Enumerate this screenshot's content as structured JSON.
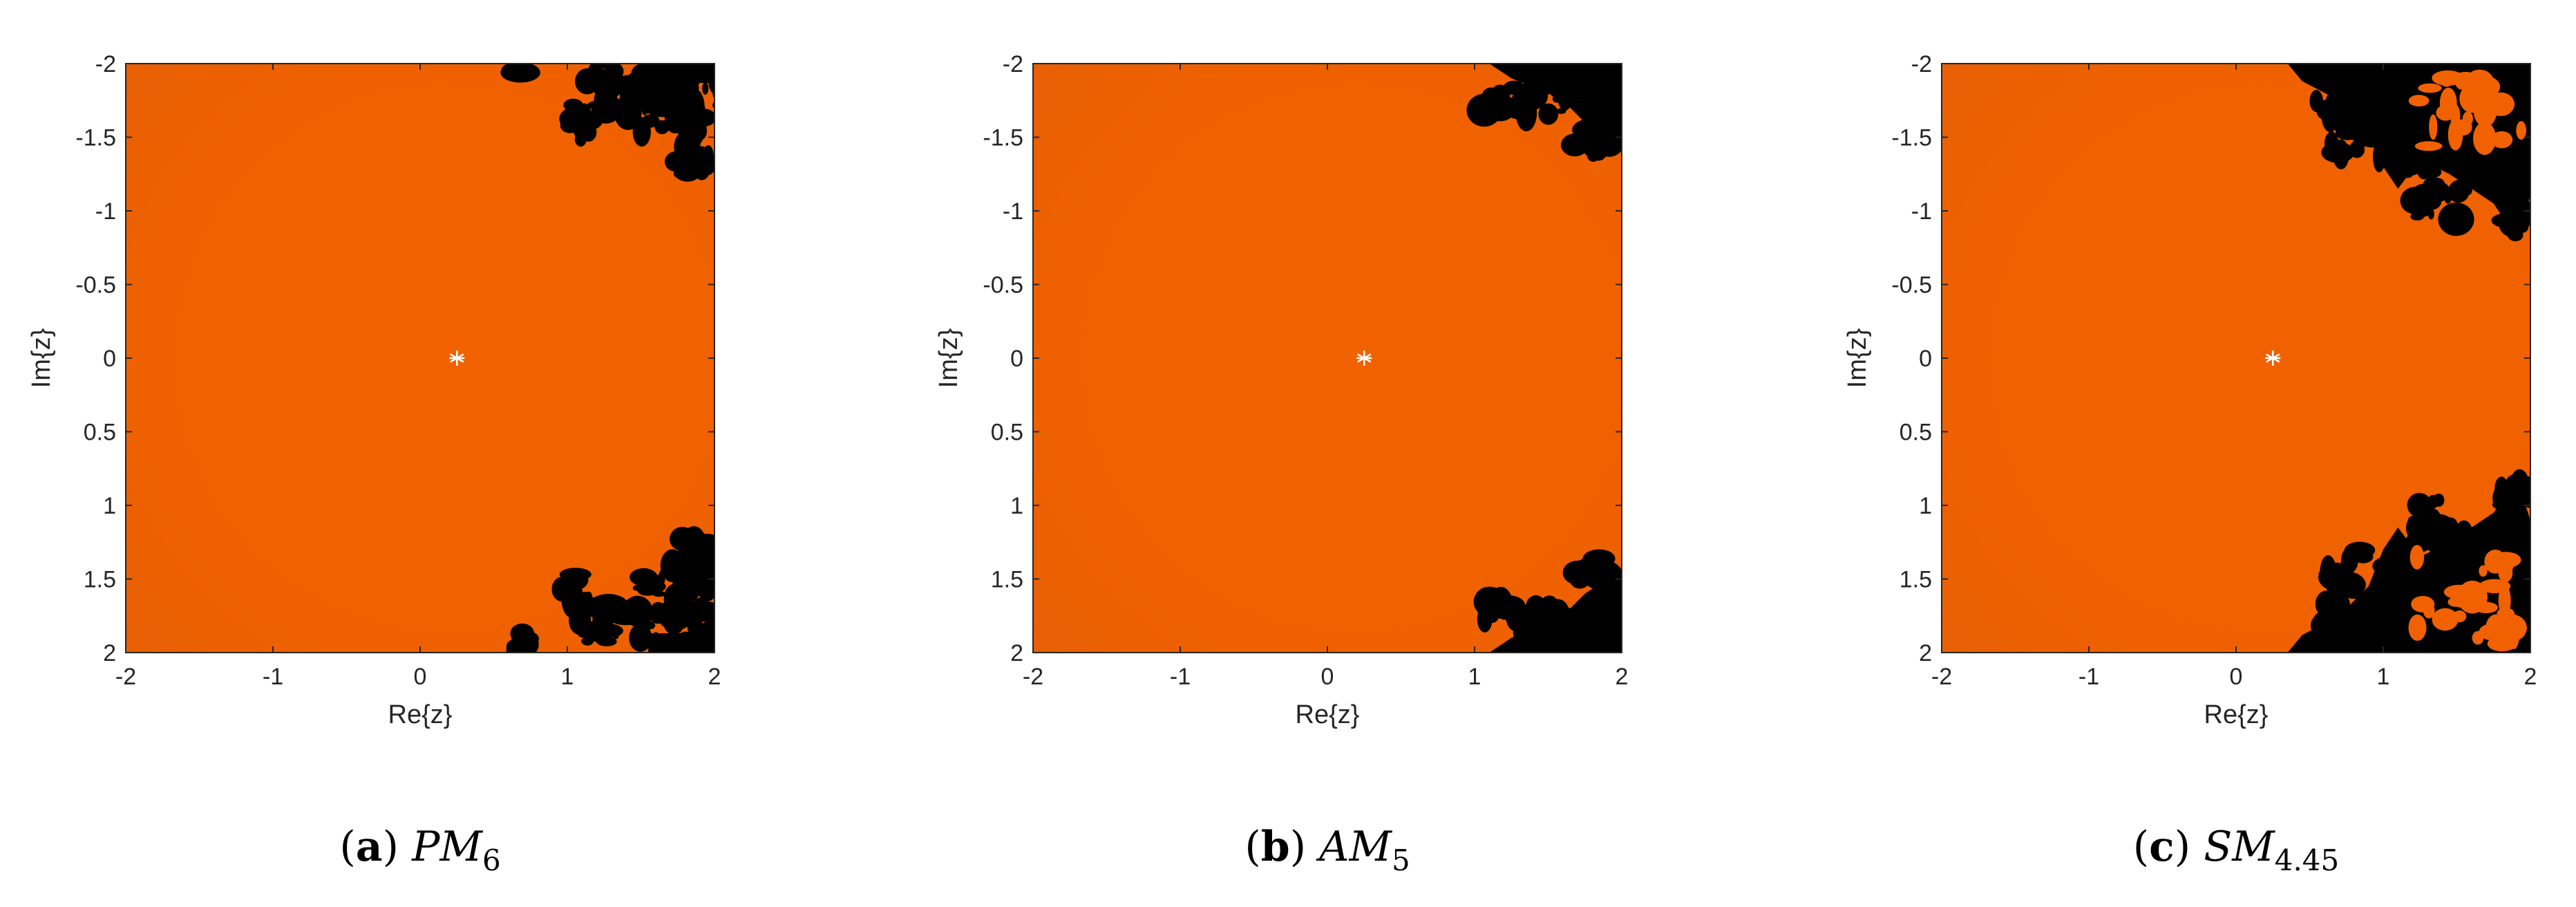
{
  "colors": {
    "basin": "#f26100",
    "divergent": "#000000",
    "fixed_point_marker": "#ffffff",
    "axis": "#262626"
  },
  "chart_data": [
    {
      "type": "heatmap",
      "panel": "a",
      "caption": {
        "letter": "a",
        "method": "PM",
        "subscript": "6"
      },
      "xlabel": "Re{z}",
      "ylabel": "Im{z}",
      "xlim": [
        -2,
        2
      ],
      "ylim": [
        -2,
        2
      ],
      "y_axis_reversed": true,
      "xticks": [
        "-2",
        "-1",
        "0",
        "1",
        "2"
      ],
      "yticks": [
        "-2",
        "-1.5",
        "-1",
        "-0.5",
        "0",
        "0.5",
        "1",
        "1.5",
        "2"
      ],
      "fixed_point": {
        "x": 0.25,
        "y": 0,
        "marker": "*"
      },
      "regions": [
        {
          "name": "convergent",
          "color": "#f26100",
          "description_location": "entire plane except right-edge lobes"
        },
        {
          "name": "non-convergent",
          "color": "#000000",
          "description_location": "scattered fractal clusters near Re{z}>0.5, |Im{z}|>1"
        }
      ]
    },
    {
      "type": "heatmap",
      "panel": "b",
      "caption": {
        "letter": "b",
        "method": "AM",
        "subscript": "5"
      },
      "xlabel": "Re{z}",
      "ylabel": "Im{z}",
      "xlim": [
        -2,
        2
      ],
      "ylim": [
        -2,
        2
      ],
      "y_axis_reversed": true,
      "xticks": [
        "-2",
        "-1",
        "0",
        "1",
        "2"
      ],
      "yticks": [
        "-2",
        "-1.5",
        "-1",
        "-0.5",
        "0",
        "0.5",
        "1",
        "1.5",
        "2"
      ],
      "fixed_point": {
        "x": 0.25,
        "y": 0,
        "marker": "*"
      },
      "regions": [
        {
          "name": "convergent",
          "color": "#f26100"
        },
        {
          "name": "non-convergent",
          "color": "#000000",
          "description_location": "corner lobes near Re{z}>1.1, |Im{z}|>1.3"
        }
      ]
    },
    {
      "type": "heatmap",
      "panel": "c",
      "caption": {
        "letter": "c",
        "method": "SM",
        "subscript": "4.45"
      },
      "xlabel": "Re{z}",
      "ylabel": "Im{z}",
      "xlim": [
        -2,
        2
      ],
      "ylim": [
        -2,
        2
      ],
      "y_axis_reversed": true,
      "xticks": [
        "-2",
        "-1",
        "0",
        "1",
        "2"
      ],
      "yticks": [
        "-2",
        "-1.5",
        "-1",
        "-0.5",
        "0",
        "0.5",
        "1",
        "1.5",
        "2"
      ],
      "fixed_point": {
        "x": 0.25,
        "y": 0,
        "marker": "*"
      },
      "regions": [
        {
          "name": "convergent",
          "color": "#f26100"
        },
        {
          "name": "non-convergent",
          "color": "#000000",
          "description_location": "large fan-shaped lobes near Re{z} 0.3–1.9, |Im{z}|>0.9"
        }
      ]
    }
  ]
}
